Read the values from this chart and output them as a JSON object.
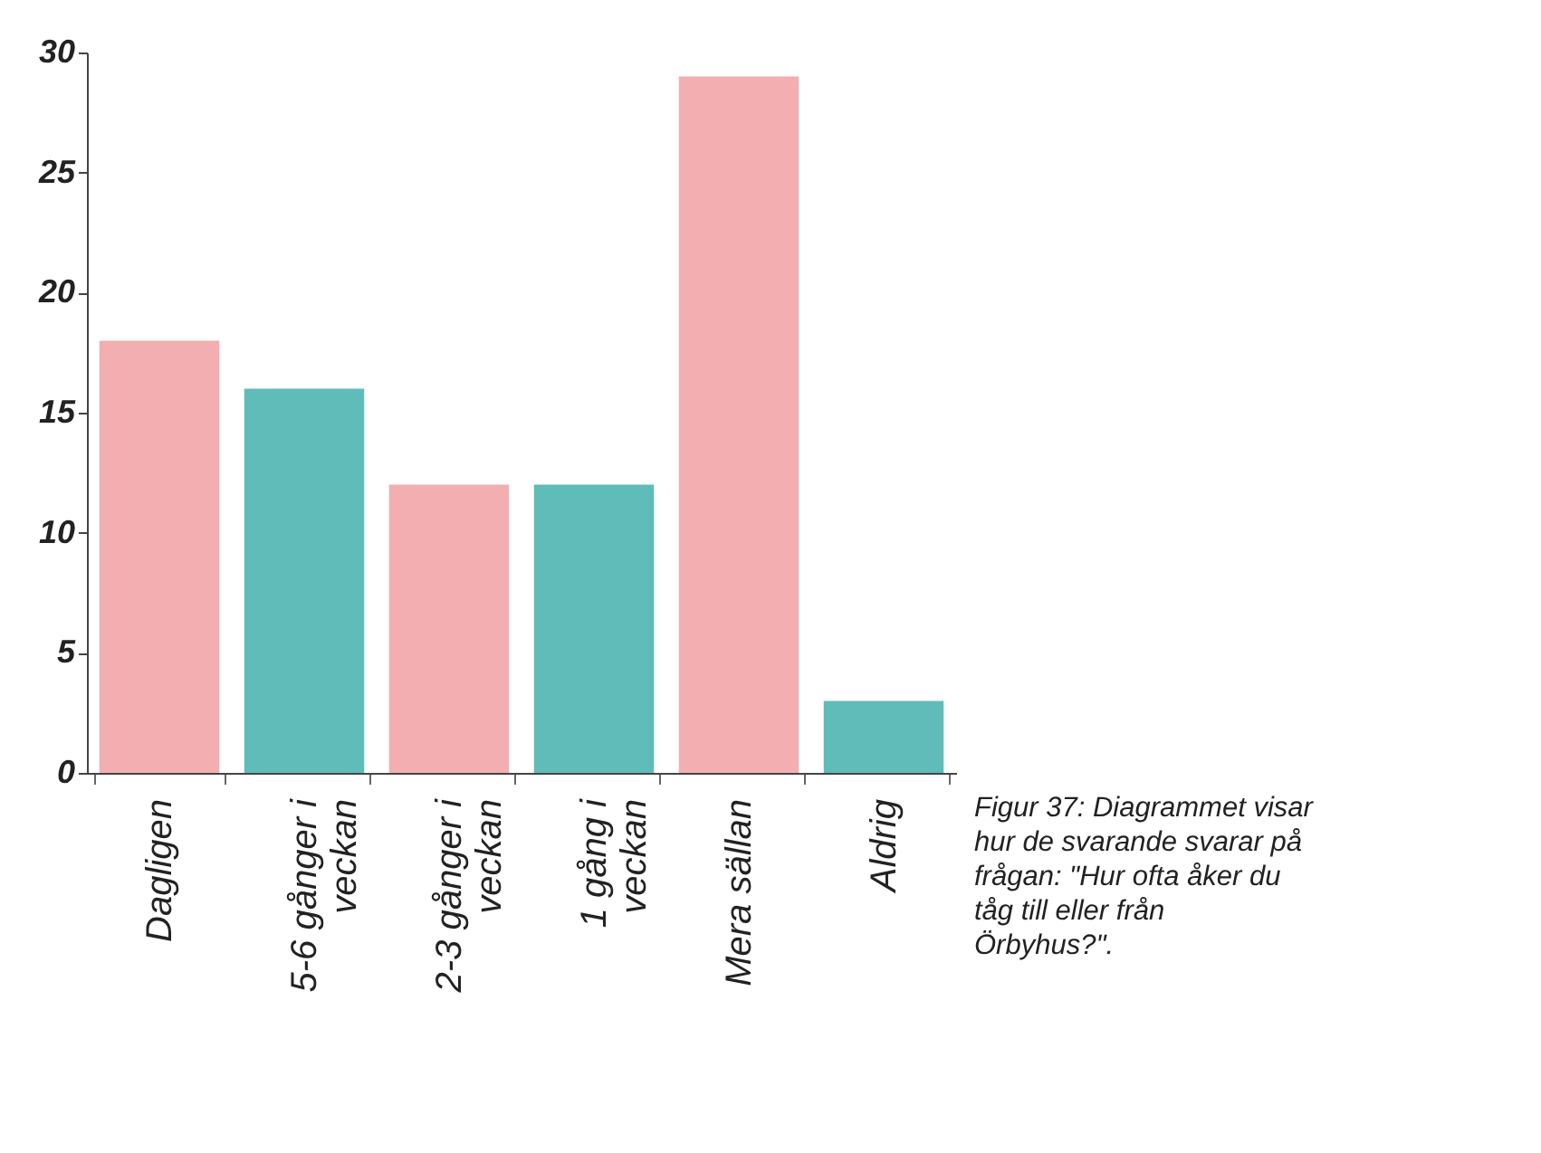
{
  "chart_data": {
    "type": "bar",
    "categories": [
      "Dagligen",
      "5-6 gånger i veckan",
      "2-3 gånger i veckan",
      "1 gång i veckan",
      "Mera sällan",
      "Aldrig"
    ],
    "values": [
      18,
      16,
      12,
      12,
      29,
      3
    ],
    "colors": [
      "#f2aeb0",
      "#5fbcb8",
      "#f2aeb0",
      "#5fbcb8",
      "#f2aeb0",
      "#5fbcb8"
    ],
    "ylim": [
      0,
      30
    ],
    "yticks": [
      0,
      5,
      10,
      15,
      20,
      25,
      30
    ],
    "grid": false,
    "legend": false,
    "annotations": [
      "Figur 37: Diagrammet visar hur de svarande svarar på frågan: \"Hur ofta åker du tåg till eller från Örbyhus?\"."
    ]
  }
}
